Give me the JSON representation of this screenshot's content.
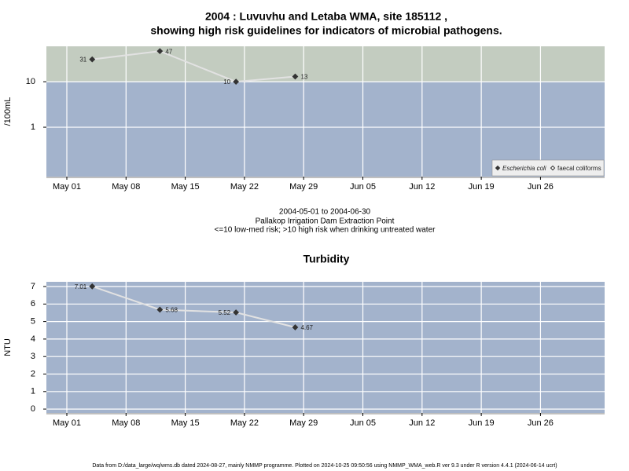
{
  "chart_data": [
    {
      "type": "line",
      "title": [
        "2004 : Luvuvhu and Letaba WMA, site 185112 ,",
        "showing high risk guidelines for indicators of microbial pathogens."
      ],
      "y_label": "/100mL",
      "x": [
        "2004-05-04",
        "2004-05-12",
        "2004-05-21",
        "2004-05-28"
      ],
      "series": [
        {
          "name": "Escherichia coli",
          "color": "#333333",
          "line_color": "#e2e2e2",
          "filled": true,
          "values": [
            31,
            47,
            10,
            13
          ]
        },
        {
          "name": "faecal coliforms",
          "color": "#333333",
          "line_color": "#e2e2e2",
          "filled": false,
          "values": [
            null,
            null,
            null,
            null
          ]
        }
      ],
      "log_scale": true,
      "ylim": [
        0.082,
        60
      ],
      "yticks": [
        1,
        10
      ],
      "xlim": [
        "2004-04-28T14:00",
        "2004-07-03T14:00"
      ],
      "xticks": [
        {
          "value": "2004-05-01",
          "label": "May 01"
        },
        {
          "value": "2004-05-08",
          "label": "May 08"
        },
        {
          "value": "2004-05-15",
          "label": "May 15"
        },
        {
          "value": "2004-05-22",
          "label": "May 22"
        },
        {
          "value": "2004-05-29",
          "label": "May 29"
        },
        {
          "value": "2004-06-05",
          "label": "Jun 05"
        },
        {
          "value": "2004-06-12",
          "label": "Jun 12"
        },
        {
          "value": "2004-06-19",
          "label": "Jun 19"
        },
        {
          "value": "2004-06-26",
          "label": "Jun 26"
        }
      ],
      "grid": true,
      "background": "#a3b3cc",
      "high_risk_above": 10,
      "high_risk_color": "#c3ccc0",
      "legend": "lower right"
    },
    {
      "type": "line",
      "title": [
        "Turbidity"
      ],
      "y_label": "NTU",
      "x": [
        "2004-05-04",
        "2004-05-12",
        "2004-05-21",
        "2004-05-28"
      ],
      "series": [
        {
          "name": "Turbidity",
          "color": "#333333",
          "line_color": "#e2e2e2",
          "filled": true,
          "values": [
            7.01,
            5.68,
            5.52,
            4.67
          ]
        }
      ],
      "log_scale": false,
      "ylim": [
        -0.22,
        7.27
      ],
      "yticks": [
        0,
        1,
        2,
        3,
        4,
        5,
        6,
        7
      ],
      "xlim": [
        "2004-04-28T14:00",
        "2004-07-03T14:00"
      ],
      "xticks": [
        {
          "value": "2004-05-01",
          "label": "May 01"
        },
        {
          "value": "2004-05-08",
          "label": "May 08"
        },
        {
          "value": "2004-05-15",
          "label": "May 15"
        },
        {
          "value": "2004-05-22",
          "label": "May 22"
        },
        {
          "value": "2004-05-29",
          "label": "May 29"
        },
        {
          "value": "2004-06-05",
          "label": "Jun 05"
        },
        {
          "value": "2004-06-12",
          "label": "Jun 12"
        },
        {
          "value": "2004-06-19",
          "label": "Jun 19"
        },
        {
          "value": "2004-06-26",
          "label": "Jun 26"
        }
      ],
      "grid": true,
      "background": "#a3b3cc"
    }
  ],
  "notes": [
    "2004-05-01 to 2004-06-30",
    "Pallakop Irrigation Dam Extraction Point",
    "<=10 low-med risk; >10 high risk when drinking untreated water"
  ],
  "footer": "Data from D:/data_large/wq/wms.db dated 2024-08-27, mainly NMMP programme. Plotted on 2024-10-25 09:50:56 using NMMP_WMA_web.R ver 9.3 under R version 4.4.1 (2024-06-14 ucrt)"
}
